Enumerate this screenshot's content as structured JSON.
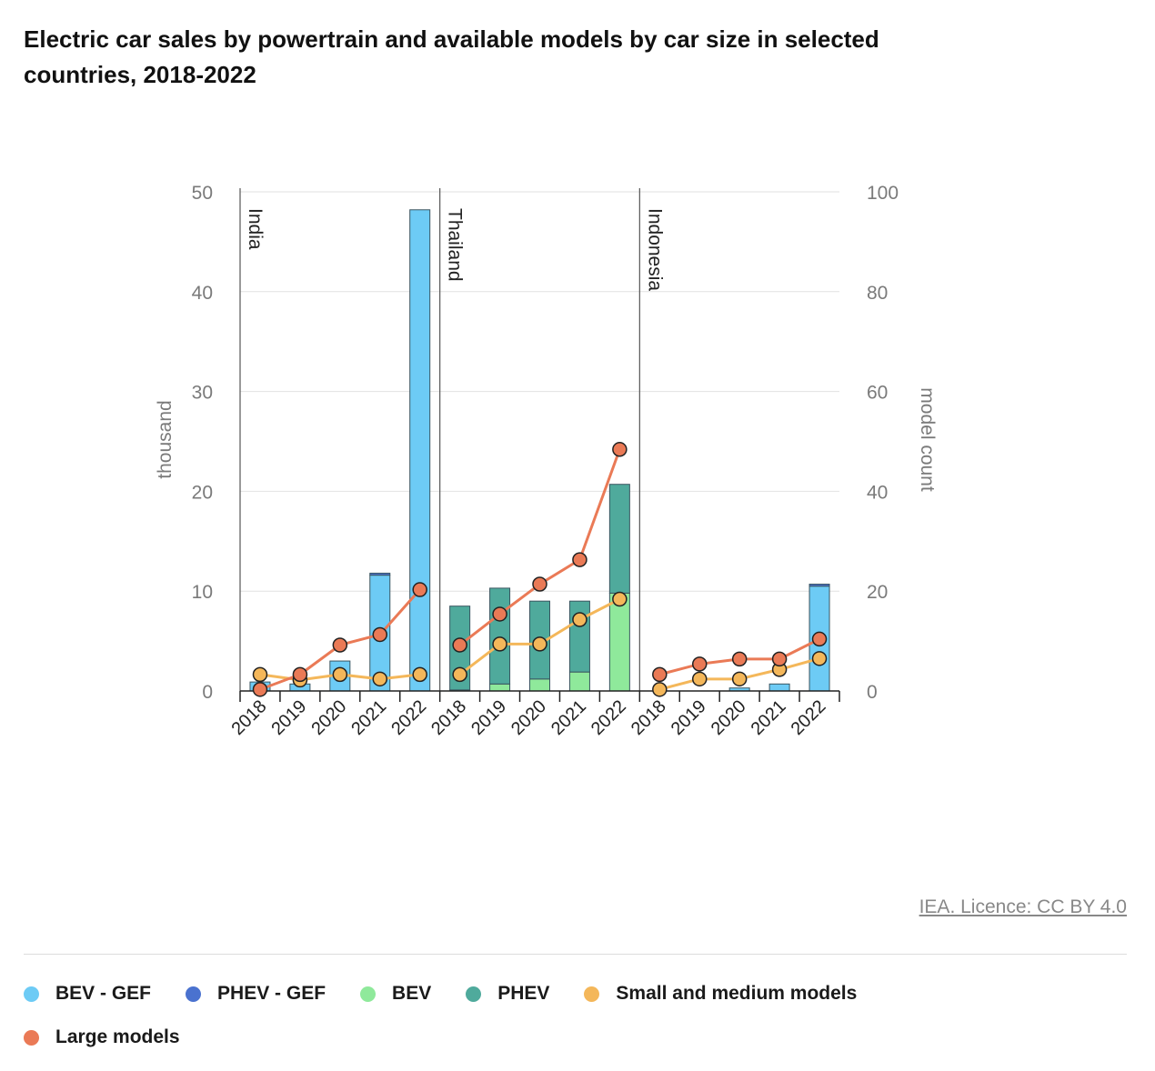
{
  "title": "Electric car sales by powertrain and available models by car size in selected countries, 2018-2022",
  "credit": "IEA. Licence: CC BY 4.0",
  "colors": {
    "bev_gef": "#6dcbf5",
    "phev_gef": "#4a72cf",
    "bev": "#8fe99b",
    "phev": "#4faa9c",
    "small_medium": "#f4b75a",
    "large": "#ea7a56"
  },
  "legend": [
    {
      "label": "BEV - GEF",
      "color": "#6dcbf5"
    },
    {
      "label": "PHEV - GEF",
      "color": "#4a72cf"
    },
    {
      "label": "BEV",
      "color": "#8fe99b"
    },
    {
      "label": "PHEV",
      "color": "#4faa9c"
    },
    {
      "label": "Small and medium models",
      "color": "#f4b75a"
    },
    {
      "label": "Large models",
      "color": "#ea7a56"
    }
  ],
  "chart_data": {
    "type": "bar",
    "title": "Electric car sales by powertrain and available models by car size in selected countries, 2018-2022",
    "ylabel": "thousand",
    "y2label": "model count",
    "ylim": [
      0,
      50
    ],
    "y2lim": [
      0,
      100
    ],
    "yticks": [
      0,
      10,
      20,
      30,
      40,
      50
    ],
    "y2ticks": [
      0,
      20,
      40,
      60,
      80,
      100
    ],
    "grid": true,
    "legend_position": "bottom",
    "groups": [
      "India",
      "Thailand",
      "Indonesia"
    ],
    "categories": [
      "2018",
      "2019",
      "2020",
      "2021",
      "2022"
    ],
    "bar_series": [
      {
        "name": "BEV - GEF",
        "color": "#6dcbf5",
        "values": [
          [
            0.9,
            0.7,
            3.0,
            11.6,
            48.2
          ],
          [
            0,
            0,
            0,
            0,
            0
          ],
          [
            0,
            0,
            0.3,
            0.7,
            10.5
          ]
        ]
      },
      {
        "name": "PHEV - GEF",
        "color": "#4a72cf",
        "values": [
          [
            0,
            0,
            0,
            0.2,
            0
          ],
          [
            0,
            0,
            0,
            0,
            0
          ],
          [
            0,
            0,
            0,
            0,
            0.2
          ]
        ]
      },
      {
        "name": "BEV",
        "color": "#8fe99b",
        "values": [
          [
            0,
            0,
            0,
            0,
            0
          ],
          [
            0.1,
            0.7,
            1.2,
            1.9,
            9.8
          ],
          [
            0,
            0,
            0,
            0,
            0
          ]
        ]
      },
      {
        "name": "PHEV",
        "color": "#4faa9c",
        "values": [
          [
            0,
            0,
            0,
            0,
            0
          ],
          [
            8.4,
            9.6,
            7.8,
            7.1,
            10.9
          ],
          [
            0,
            0,
            0,
            0,
            0
          ]
        ]
      }
    ],
    "line_series": [
      {
        "name": "Small and medium models",
        "color": "#f4b75a",
        "axis": "right",
        "values": [
          [
            3.3,
            2.2,
            3.3,
            2.4,
            3.3
          ],
          [
            3.3,
            9.4,
            9.4,
            14.3,
            18.4
          ],
          [
            0.3,
            2.4,
            2.4,
            4.3,
            6.5
          ]
        ]
      },
      {
        "name": "Large models",
        "color": "#ea7a56",
        "axis": "right",
        "values": [
          [
            0.3,
            3.3,
            9.2,
            11.3,
            20.3
          ],
          [
            9.2,
            15.4,
            21.4,
            26.3,
            48.4
          ],
          [
            3.3,
            5.4,
            6.4,
            6.4,
            10.4
          ]
        ]
      }
    ]
  }
}
